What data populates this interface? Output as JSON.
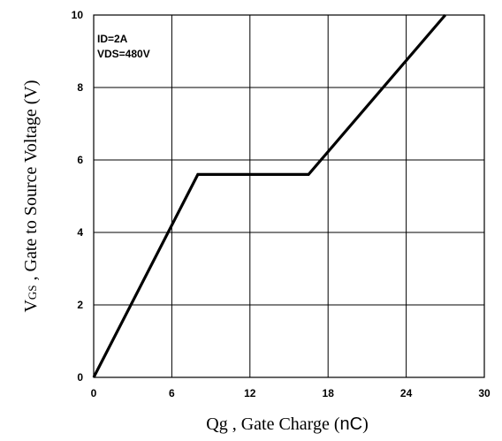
{
  "chart_data": {
    "type": "line",
    "x": [
      0,
      8,
      16.5,
      27
    ],
    "y": [
      0,
      5.6,
      5.6,
      10
    ],
    "xlim": [
      0,
      30
    ],
    "ylim": [
      0,
      10
    ],
    "xticks": [
      "0",
      "6",
      "12",
      "18",
      "24",
      "30"
    ],
    "yticks": [
      "0",
      "2",
      "4",
      "6",
      "8",
      "10"
    ],
    "grid": true,
    "xlabel": {
      "main": "Qg , Gate Charge (",
      "unit": "nC",
      "close": ")"
    },
    "ylabel": {
      "v": "V",
      "sub": "GS",
      "rest": " , Gate to Source Voltage (V)"
    },
    "annotations": [
      "ID=2A",
      "VDS=480V"
    ],
    "colors": {
      "line": "#000000",
      "grid": "#000000",
      "background": "#ffffff"
    }
  }
}
